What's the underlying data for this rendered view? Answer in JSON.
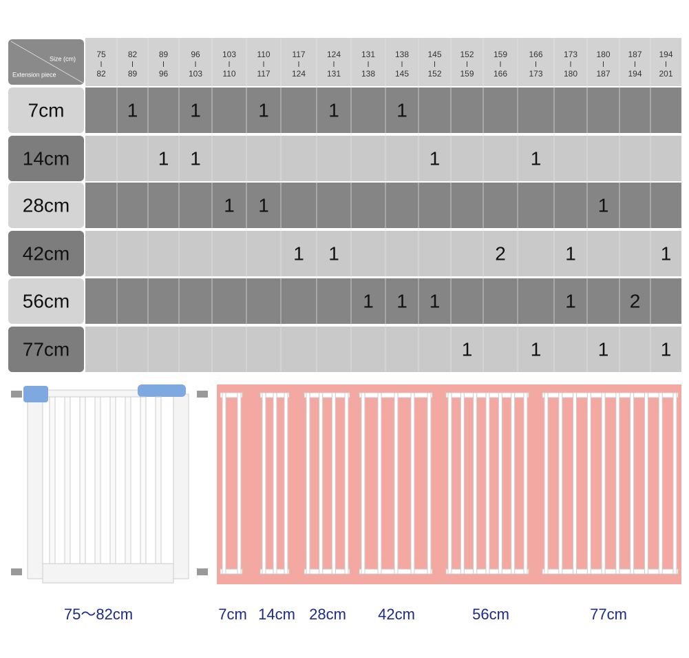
{
  "table": {
    "header": {
      "size_label": "Size (cm)",
      "piece_label": "Extension piece"
    },
    "columns": [
      {
        "from": 75,
        "to": 82
      },
      {
        "from": 82,
        "to": 89
      },
      {
        "from": 89,
        "to": 96
      },
      {
        "from": 96,
        "to": 103
      },
      {
        "from": 103,
        "to": 110
      },
      {
        "from": 110,
        "to": 117
      },
      {
        "from": 117,
        "to": 124
      },
      {
        "from": 124,
        "to": 131
      },
      {
        "from": 131,
        "to": 138
      },
      {
        "from": 138,
        "to": 145
      },
      {
        "from": 145,
        "to": 152
      },
      {
        "from": 152,
        "to": 159
      },
      {
        "from": 159,
        "to": 166
      },
      {
        "from": 166,
        "to": 173
      },
      {
        "from": 173,
        "to": 180
      },
      {
        "from": 180,
        "to": 187
      },
      {
        "from": 187,
        "to": 194
      },
      {
        "from": 194,
        "to": 201
      }
    ],
    "rows": [
      {
        "piece": "7cm",
        "counts": [
          null,
          1,
          null,
          1,
          null,
          1,
          null,
          1,
          null,
          1,
          null,
          null,
          null,
          null,
          null,
          null,
          null,
          null
        ]
      },
      {
        "piece": "14cm",
        "counts": [
          null,
          null,
          1,
          1,
          null,
          null,
          null,
          null,
          null,
          null,
          1,
          null,
          null,
          1,
          null,
          null,
          null,
          null
        ]
      },
      {
        "piece": "28cm",
        "counts": [
          null,
          null,
          null,
          null,
          1,
          1,
          null,
          null,
          null,
          null,
          null,
          null,
          null,
          null,
          null,
          1,
          null,
          null
        ]
      },
      {
        "piece": "42cm",
        "counts": [
          null,
          null,
          null,
          null,
          null,
          null,
          1,
          1,
          null,
          null,
          null,
          null,
          2,
          null,
          1,
          null,
          null,
          1
        ]
      },
      {
        "piece": "56cm",
        "counts": [
          null,
          null,
          null,
          null,
          null,
          null,
          null,
          null,
          1,
          1,
          1,
          null,
          null,
          null,
          1,
          null,
          2,
          null
        ]
      },
      {
        "piece": "77cm",
        "counts": [
          null,
          null,
          null,
          null,
          null,
          null,
          null,
          null,
          null,
          null,
          null,
          1,
          null,
          1,
          null,
          1,
          null,
          1
        ]
      }
    ]
  },
  "captions": [
    "75～82cm",
    "7cm",
    "14cm",
    "28cm",
    "42cm",
    "56cm",
    "77cm"
  ]
}
